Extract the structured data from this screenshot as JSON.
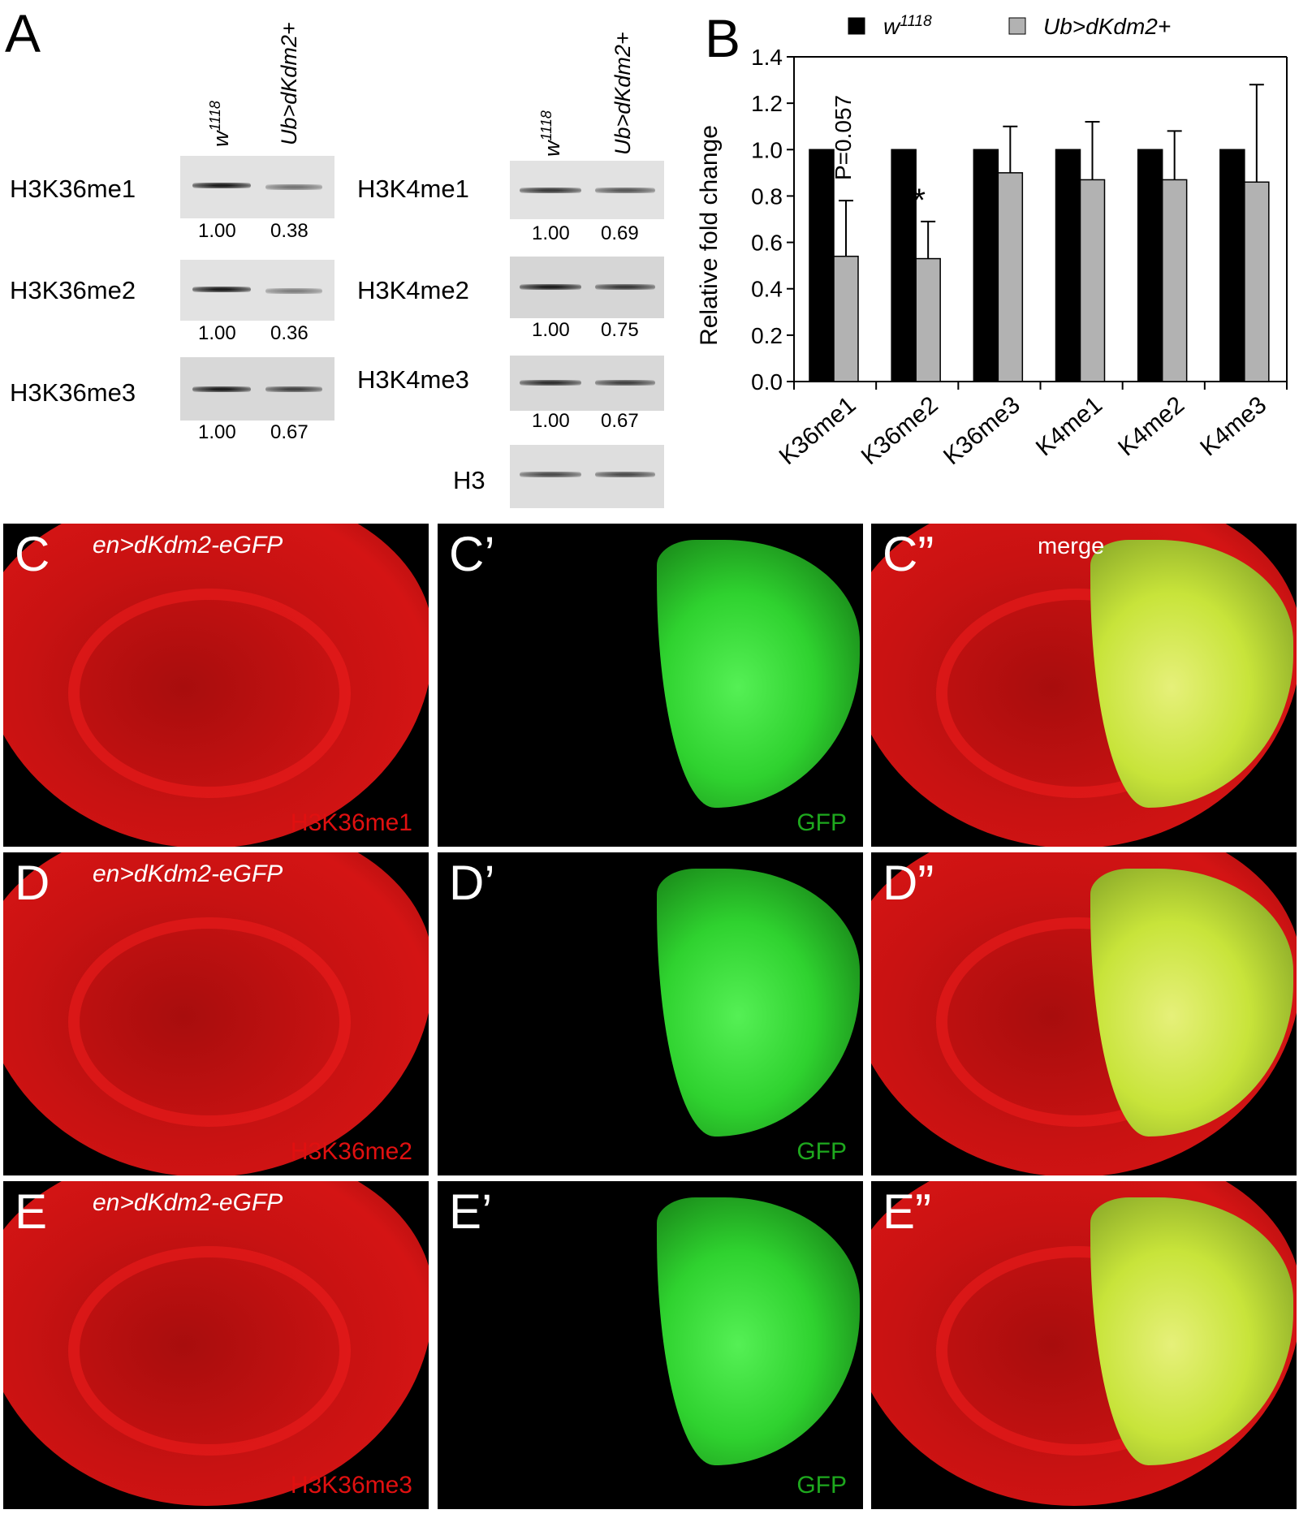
{
  "panel_a": {
    "letter": "A",
    "left_lanes": [
      "w1118",
      "Ub>dKdm2+"
    ],
    "right_lanes": [
      "w1118",
      "Ub>dKdm2+"
    ],
    "left_blots": [
      {
        "label": "H3K36me1",
        "values": [
          "1.00",
          "0.38"
        ]
      },
      {
        "label": "H3K36me2",
        "values": [
          "1.00",
          "0.36"
        ]
      },
      {
        "label": "H3K36me3",
        "values": [
          "1.00",
          "0.67"
        ]
      }
    ],
    "right_blots": [
      {
        "label": "H3K4me1",
        "values": [
          "1.00",
          "0.69"
        ]
      },
      {
        "label": "H3K4me2",
        "values": [
          "1.00",
          "0.75"
        ]
      },
      {
        "label": "H3K4me3",
        "values": [
          "1.00",
          "0.67"
        ]
      },
      {
        "label": "H3",
        "values": []
      }
    ]
  },
  "chart_data": {
    "type": "bar",
    "panel_letter": "B",
    "title": "",
    "xlabel": "",
    "ylabel": "Relative fold change",
    "ylim": [
      0,
      1.4
    ],
    "yticks": [
      "0.0",
      "0.2",
      "0.4",
      "0.6",
      "0.8",
      "1.0",
      "1.2",
      "1.4"
    ],
    "categories": [
      "K36me1",
      "K36me2",
      "K36me3",
      "K4me1",
      "K4me2",
      "K4me3"
    ],
    "series": [
      {
        "name": "w1118",
        "color": "#000000",
        "values": [
          1.0,
          1.0,
          1.0,
          1.0,
          1.0,
          1.0
        ],
        "errors": [
          0,
          0,
          0,
          0,
          0,
          0
        ]
      },
      {
        "name": "Ub>dKdm2+",
        "color": "#b2b2b2",
        "values": [
          0.54,
          0.53,
          0.9,
          0.87,
          0.87,
          0.86
        ],
        "errors": [
          0.24,
          0.16,
          0.2,
          0.25,
          0.21,
          0.42
        ]
      }
    ],
    "legend": {
      "position": "top",
      "entries": [
        "w1118",
        "Ub>dKdm2+"
      ]
    },
    "annotations": [
      {
        "category": "K36me1",
        "text": "P=0.057"
      },
      {
        "category": "K36me2",
        "text": "*"
      }
    ],
    "grid": false
  },
  "micrographs": {
    "genotype": "en>dKdm2-eGFP",
    "merge_label": "merge",
    "rows": [
      {
        "red": {
          "letter": "C",
          "stain": "H3K36me1"
        },
        "green": {
          "letter": "C’",
          "stain": "GFP"
        },
        "merge": {
          "letter": "C”"
        }
      },
      {
        "red": {
          "letter": "D",
          "stain": "H3K36me2"
        },
        "green": {
          "letter": "D’",
          "stain": "GFP"
        },
        "merge": {
          "letter": "D”"
        }
      },
      {
        "red": {
          "letter": "E",
          "stain": "H3K36me3"
        },
        "green": {
          "letter": "E’",
          "stain": "GFP"
        },
        "merge": {
          "letter": "E”"
        }
      }
    ],
    "colors": {
      "red": "#e01010",
      "green": "#2fd22f",
      "yellow": "#c8e43a",
      "stain_red": "#e01010",
      "stain_green": "#1ea81e"
    }
  }
}
